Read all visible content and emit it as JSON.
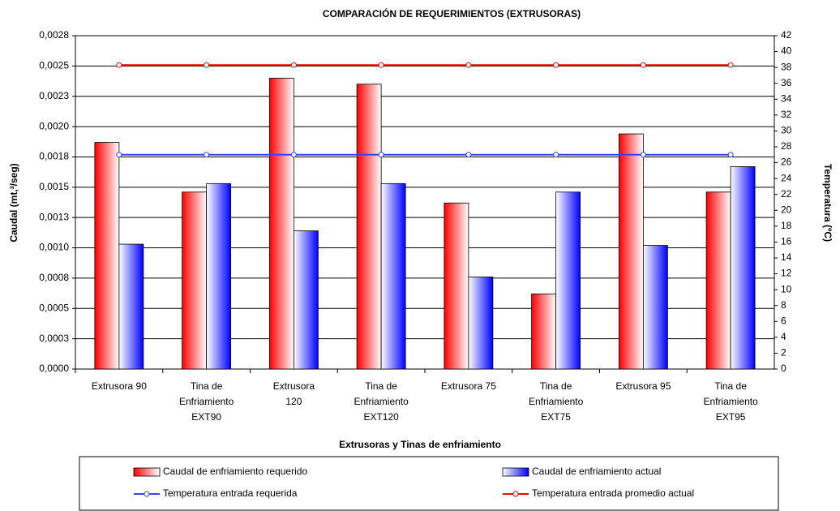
{
  "chart_data": {
    "type": "bar_line",
    "title": "COMPARACIÓN DE REQUERIMIENTOS (EXTRUSORAS)",
    "x_label": "Extrusoras y Tinas de enfriamiento",
    "y_label": "Caudal (mt,³/seg)",
    "y2_label": "Temperatura (ºC)",
    "categories": [
      "Extrusora 90",
      "Tina de Enfriamiento EXT90",
      "Extrusora 120",
      "Tina de Enfriamiento EXT120",
      "Extrusora 75",
      "Tina de Enfriamiento EXT75",
      "Extrusora 95",
      "Tina de Enfriamiento EXT95"
    ],
    "series": [
      {
        "name": "Caudal de enfriamiento requerido",
        "color": "#ff0000",
        "kind": "bar",
        "values": [
          0.00187,
          0.00146,
          0.0024,
          0.00235,
          0.00137,
          0.00062,
          0.00194,
          0.00146
        ]
      },
      {
        "name": "Caudal de enfriamiento actual",
        "color": "#0000ff",
        "kind": "bar",
        "values": [
          0.00103,
          0.00153,
          0.00114,
          0.00153,
          0.00076,
          0.00146,
          0.00102,
          0.00167
        ]
      },
      {
        "name": "Temperatura entrada requerida",
        "color": "#3344ff",
        "kind": "line",
        "axis": "y2",
        "values": [
          27,
          27,
          27,
          27,
          27,
          27,
          27,
          27
        ]
      },
      {
        "name": "Temperatura entrada promedio actual",
        "color": "#ff0000",
        "kind": "line",
        "axis": "y2",
        "values": [
          38.3,
          38.3,
          38.3,
          38.3,
          38.3,
          38.3,
          38.3,
          38.3
        ]
      }
    ],
    "ylim": [
      0,
      0.00275
    ],
    "yticks": [
      {
        "value": 0,
        "label": "0,0000"
      },
      {
        "value": 0.00025,
        "label": "0,0003"
      },
      {
        "value": 0.0005,
        "label": "0,0005"
      },
      {
        "value": 0.00075,
        "label": "0,0008"
      },
      {
        "value": 0.001,
        "label": "0,0010"
      },
      {
        "value": 0.00125,
        "label": "0,0013"
      },
      {
        "value": 0.0015,
        "label": "0,0015"
      },
      {
        "value": 0.00175,
        "label": "0,0018"
      },
      {
        "value": 0.002,
        "label": "0,0020"
      },
      {
        "value": 0.00225,
        "label": "0,0023"
      },
      {
        "value": 0.0025,
        "label": "0,0025"
      },
      {
        "value": 0.00275,
        "label": "0,0028"
      }
    ],
    "y2lim": [
      0,
      42
    ],
    "y2ticks": [
      0,
      2,
      4,
      6,
      8,
      10,
      12,
      14,
      16,
      18,
      20,
      22,
      24,
      26,
      28,
      30,
      32,
      34,
      36,
      38,
      40,
      42
    ],
    "grid": true
  }
}
